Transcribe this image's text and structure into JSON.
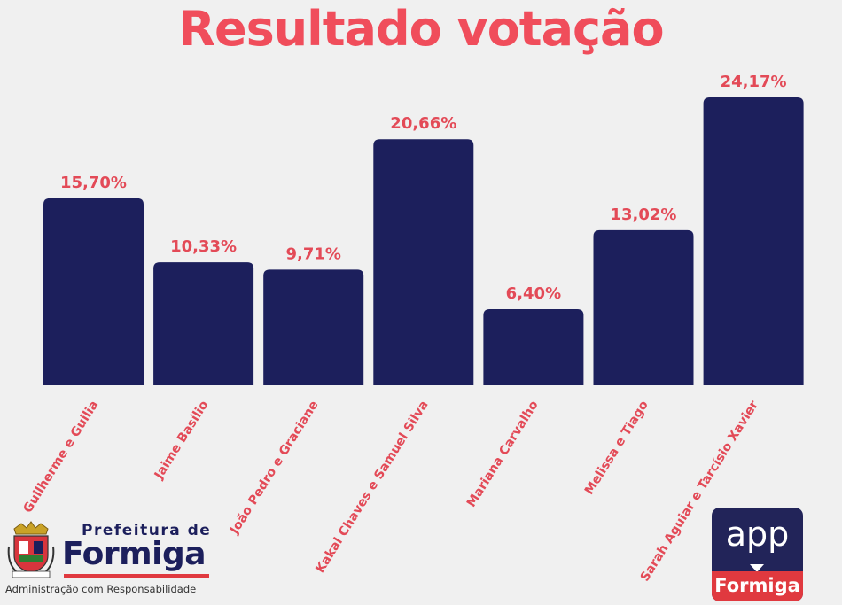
{
  "header": {
    "title": "Resultado votação"
  },
  "chart_data": {
    "type": "bar",
    "title": "Resultado votação",
    "categories": [
      "Guilherme e Guilia",
      "Jaime Basílio",
      "João Pedro e Graciane",
      "Kakal Chaves e Samuel Silva",
      "Mariana Carvalho",
      "Melissa e Tiago",
      "Sarah Aguiar e Tarcísio Xavier"
    ],
    "values": [
      15.7,
      10.33,
      9.71,
      20.66,
      6.4,
      13.02,
      24.17
    ],
    "value_labels": [
      "15,70%",
      "10,33%",
      "9,71%",
      "20,66%",
      "6,40%",
      "13,02%",
      "24,17%"
    ],
    "ylim": [
      0,
      24.17
    ],
    "grid": false,
    "legend": "none",
    "colors": {
      "bar": "#1c1f5c",
      "label": "#e34a57",
      "title": "#f04d5b"
    }
  },
  "footer": {
    "org_prefix": "Prefeitura de",
    "org_name": "Formiga",
    "tagline": "Administração com Responsabilidade",
    "crest_icon": "city-crest-icon",
    "app_logo": {
      "top_text": "app",
      "bottom_text": "Formiga"
    }
  }
}
